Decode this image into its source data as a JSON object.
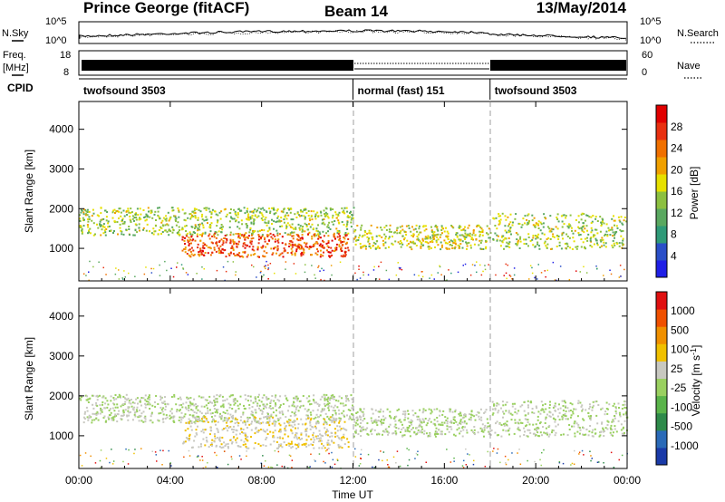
{
  "header": {
    "station": "Prince George (fitACF)",
    "beam": "Beam 14",
    "date": "13/May/2014"
  },
  "noise_panel": {
    "left_label": "N.Sky",
    "right_label": "N.Search",
    "left_ticks": [
      "10^5",
      "10^0"
    ],
    "right_ticks": [
      "10^5",
      "10^0"
    ]
  },
  "freq_panel": {
    "left_label_1": "Freq.",
    "left_label_2": "[MHz]",
    "right_label": "Nave",
    "left_ticks": [
      "18",
      "8"
    ],
    "right_ticks": [
      "60",
      "0"
    ]
  },
  "cpid_panel": {
    "label": "CPID",
    "segments": [
      {
        "name": "twofsound 3503",
        "start": 0,
        "end": 12
      },
      {
        "name": "normal (fast) 151",
        "start": 12,
        "end": 18
      },
      {
        "name": "twofsound 3503",
        "start": 18,
        "end": 24
      }
    ]
  },
  "x_axis": {
    "title": "Time UT",
    "ticks": [
      "00:00",
      "04:00",
      "08:00",
      "12:00",
      "16:00",
      "20:00",
      "00:00"
    ]
  },
  "chart_data": [
    {
      "type": "heatmap",
      "title": "",
      "xlabel": "Time UT",
      "ylabel": "Slant Range [km]",
      "xlim": [
        0,
        24
      ],
      "ylim": [
        180,
        4700
      ],
      "yticks": [
        "4000",
        "3000",
        "2000",
        "1000"
      ],
      "colorbar": {
        "label": "Power [dB]",
        "range": [
          0,
          30
        ],
        "ticks": [
          "28",
          "24",
          "20",
          "16",
          "12",
          "8",
          "4"
        ],
        "colors": [
          "#1f1fe6",
          "#2a4fc8",
          "#2f9a78",
          "#5aa860",
          "#8cc040",
          "#e6e000",
          "#f0a000",
          "#f07000",
          "#e83010",
          "#e00000"
        ]
      },
      "scatter_bands": [
        {
          "x_start": 0.0,
          "x_end": 12.0,
          "y_low": 1350,
          "y_high": 2050,
          "mean_power": 14
        },
        {
          "x_start": 4.5,
          "x_end": 11.8,
          "y_low": 800,
          "y_high": 1400,
          "mean_power": 24
        },
        {
          "x_start": 12.0,
          "x_end": 18.0,
          "y_low": 1000,
          "y_high": 1600,
          "mean_power": 16
        },
        {
          "x_start": 18.0,
          "x_end": 24.0,
          "y_low": 1000,
          "y_high": 1900,
          "mean_power": 14
        }
      ]
    },
    {
      "type": "heatmap",
      "title": "",
      "xlabel": "Time UT",
      "ylabel": "Slant Range [km]",
      "xlim": [
        0,
        24
      ],
      "ylim": [
        180,
        4700
      ],
      "yticks": [
        "4000",
        "3000",
        "2000",
        "1000"
      ],
      "colorbar": {
        "label": "Velocity [m s^-1]",
        "range": [
          -1100,
          1100
        ],
        "ticks": [
          "1000",
          "500",
          "100",
          "25",
          "-25",
          "-100",
          "-500",
          "-1000"
        ],
        "colors": [
          "#1a3aa8",
          "#2a6ab8",
          "#2e8a4a",
          "#5ab44a",
          "#9ad060",
          "#c8c8c0",
          "#f0c000",
          "#f09000",
          "#f05000",
          "#e01010"
        ]
      },
      "scatter_bands": [
        {
          "x_start": 0.0,
          "x_end": 12.0,
          "y_low": 1350,
          "y_high": 2050,
          "mean_velocity": 0
        },
        {
          "x_start": 4.5,
          "x_end": 11.8,
          "y_low": 700,
          "y_high": 1500,
          "mean_velocity": 180
        },
        {
          "x_start": 12.0,
          "x_end": 18.0,
          "y_low": 1000,
          "y_high": 1700,
          "mean_velocity": 0
        },
        {
          "x_start": 18.0,
          "x_end": 24.0,
          "y_low": 1000,
          "y_high": 1900,
          "mean_velocity": 0
        }
      ]
    }
  ]
}
